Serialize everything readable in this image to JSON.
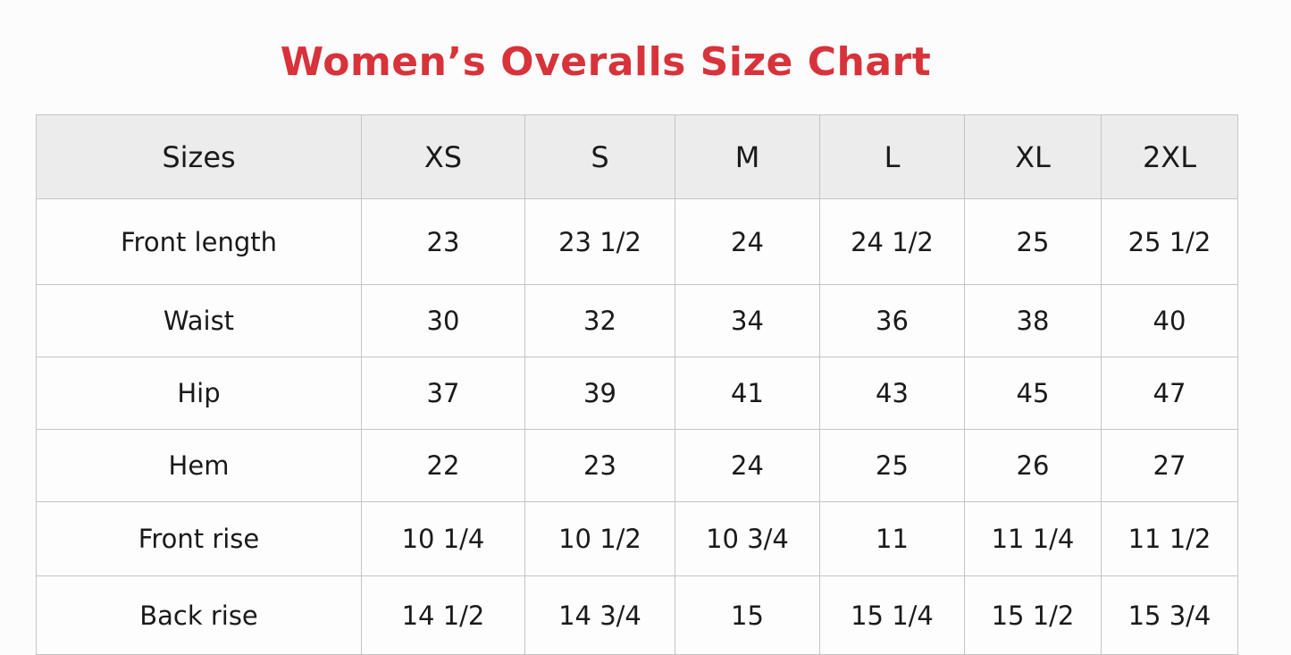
{
  "title": "Women’s Overalls Size Chart",
  "table": {
    "header": [
      "Sizes",
      "XS",
      "S",
      "M",
      "L",
      "XL",
      "2XL"
    ],
    "rows": [
      [
        "Front length",
        "23",
        "23 1/2",
        "24",
        "24 1/2",
        "25",
        "25 1/2"
      ],
      [
        "Waist",
        "30",
        "32",
        "34",
        "36",
        "38",
        "40"
      ],
      [
        "Hip",
        "37",
        "39",
        "41",
        "43",
        "45",
        "47"
      ],
      [
        "Hem",
        "22",
        "23",
        "24",
        "25",
        "26",
        "27"
      ],
      [
        "Front rise",
        "10 1/4",
        "10 1/2",
        "10 3/4",
        "11",
        "11 1/4",
        "11 1/2"
      ],
      [
        "Back rise",
        "14 1/2",
        "14 3/4",
        "15",
        "15 1/4",
        "15 1/2",
        "15 3/4"
      ]
    ]
  }
}
